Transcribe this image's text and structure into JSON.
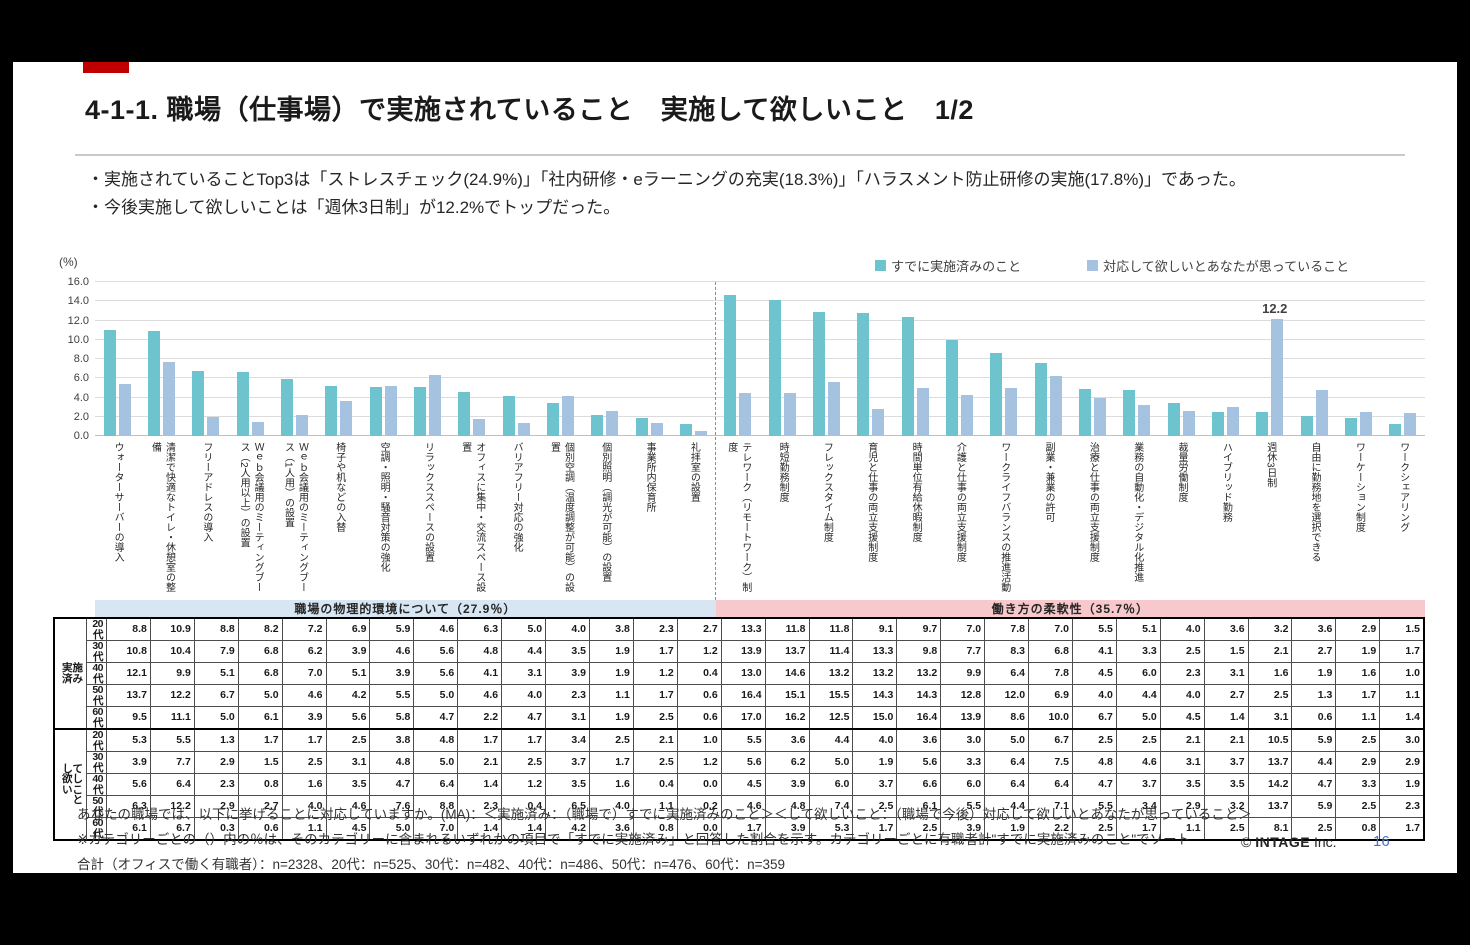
{
  "slide": {
    "title": "4-1-1. 職場（仕事場）で実施されていること　実施して欲しいこと　1/2",
    "bullets": [
      "・実施されていることTop3は「ストレスチェック(24.9%)」「社内研修・eラーニングの充実(18.3%)」「ハラスメント防止研修の実施(17.8%)」であった。",
      "・今後実施して欲しいことは「週休3日制」が12.2%でトップだった。"
    ],
    "notes": [
      "あなたの職場では、以下に挙げることに対応していますか。(MA)：＜実施済み：（職場で）すでに実施済みのこと＞＜して欲しいこと：（職場で今後）対応して欲しいとあなたが思っていること＞",
      "※カテゴリーごとの（）内の％は、そのカテゴリーに含まれるいずれかの項目で「すでに実施済み」と回答した割合を示す。カテゴリーごとに有職者計\"すでに実施済みのこと\"でソート",
      "合計（オフィスで働く有職者）：n=2328、20代：n=525、30代：n=482、40代：n=486、50代：n=476、60代：n=359"
    ],
    "copyright_symbol": "©",
    "copyright_brand": "INTAGE",
    "copyright_suffix": "Inc.",
    "page_number": "16",
    "accent_color": "#c00000"
  },
  "chart_data": {
    "type": "bar",
    "title": "",
    "unit_label": "(%)",
    "ylim": [
      0,
      16
    ],
    "ytick_step": 2,
    "grid": true,
    "legend_position": "top-right",
    "colors": {
      "implemented": "#6ec4ce",
      "desired": "#a5c3e1"
    },
    "sections": [
      {
        "label": "職場の物理的環境について（27.9％）",
        "color": "#d8e6f4",
        "count": 14
      },
      {
        "label": "働き方の柔軟性（35.7％）",
        "color": "#f8c9cc",
        "count": 16
      }
    ],
    "categories": [
      "ウォーターサーバーの導入",
      "清潔で快適なトイレ・休憩室の整備",
      "フリーアドレスの導入",
      "Ｗｅｂ会議用のミーティングブース（2人用以上）の設置",
      "Ｗｅｂ会議用のミーティングブース（1人用）の設置",
      "椅子や机などの入替",
      "空調・照明・騒音対策の強化",
      "リラックススペースの設置",
      "オフィスに集中・交流スペース設置",
      "バリアフリー対応の強化",
      "個別空調（温度調整が可能）の設置",
      "個別照明（調光が可能）の設置",
      "事業所内保育所",
      "礼拝室の設置",
      "テレワーク（リモートワーク）制度",
      "時短勤務制度",
      "フレックスタイム制度",
      "育児と仕事の両立支援制度",
      "時間単位有給休暇制度",
      "介護と仕事の両立支援制度",
      "ワークライフバランスの推進活動",
      "副業・兼業の許可",
      "治療と仕事の両立支援制度",
      "業務の自動化・デジタル化推進",
      "裁量労働制度",
      "ハイブリッド勤務",
      "週休3日制",
      "自由に勤務地を選択できる",
      "ワーケーション制度",
      "ワークシェアリング"
    ],
    "series": [
      {
        "name": "すでに実施済みのこと",
        "values": [
          11.0,
          10.9,
          6.8,
          6.6,
          5.9,
          5.2,
          5.1,
          5.1,
          4.6,
          4.2,
          3.4,
          2.2,
          1.9,
          1.2,
          14.6,
          14.1,
          12.9,
          12.8,
          12.4,
          10.0,
          8.6,
          7.6,
          4.9,
          4.8,
          3.4,
          2.5,
          2.5,
          2.1,
          1.9,
          1.3
        ]
      },
      {
        "name": "対応して欲しいとあなたが思っていること",
        "values": [
          5.4,
          7.7,
          2.0,
          1.5,
          2.2,
          3.6,
          5.2,
          6.3,
          1.8,
          1.4,
          4.2,
          2.6,
          1.4,
          0.5,
          4.5,
          4.5,
          5.6,
          2.8,
          5.0,
          4.3,
          5.0,
          6.2,
          4.0,
          3.2,
          2.6,
          3.0,
          12.2,
          4.8,
          2.5,
          2.4
        ]
      }
    ],
    "annotations": [
      {
        "category_index": 26,
        "series": 1,
        "text": "12.2"
      }
    ]
  },
  "table": {
    "row_groups": [
      {
        "label": "実施済み",
        "rows": [
          {
            "age": "20代",
            "values": [
              8.8,
              10.9,
              8.8,
              8.2,
              7.2,
              6.9,
              5.9,
              4.6,
              6.3,
              5.0,
              4.0,
              3.8,
              2.3,
              2.7,
              13.3,
              11.8,
              11.8,
              9.1,
              9.7,
              7.0,
              7.8,
              7.0,
              5.5,
              5.1,
              4.0,
              3.6,
              3.2,
              3.6,
              2.9,
              1.5
            ]
          },
          {
            "age": "30代",
            "values": [
              10.8,
              10.4,
              7.9,
              6.8,
              6.2,
              3.9,
              4.6,
              5.6,
              4.8,
              4.4,
              3.5,
              1.9,
              1.7,
              1.2,
              13.9,
              13.7,
              11.4,
              13.3,
              9.8,
              7.7,
              8.3,
              6.8,
              4.1,
              3.3,
              2.5,
              1.5,
              2.1,
              2.7,
              1.9,
              1.7
            ]
          },
          {
            "age": "40代",
            "values": [
              12.1,
              9.9,
              5.1,
              6.8,
              7.0,
              5.1,
              3.9,
              5.6,
              4.1,
              3.1,
              3.9,
              1.9,
              1.2,
              0.4,
              13.0,
              14.6,
              13.2,
              13.2,
              13.2,
              9.9,
              6.4,
              7.8,
              4.5,
              6.0,
              2.3,
              3.1,
              1.6,
              1.9,
              1.6,
              1.0
            ]
          },
          {
            "age": "50代",
            "values": [
              13.7,
              12.2,
              6.7,
              5.0,
              4.6,
              4.2,
              5.5,
              5.0,
              4.6,
              4.0,
              2.3,
              1.1,
              1.7,
              0.6,
              16.4,
              15.1,
              15.5,
              14.3,
              14.3,
              12.8,
              12.0,
              6.9,
              4.0,
              4.4,
              4.0,
              2.7,
              2.5,
              1.3,
              1.7,
              1.1
            ]
          },
          {
            "age": "60代",
            "values": [
              9.5,
              11.1,
              5.0,
              6.1,
              3.9,
              5.6,
              5.8,
              4.7,
              2.2,
              4.7,
              3.1,
              1.9,
              2.5,
              0.6,
              17.0,
              16.2,
              12.5,
              15.0,
              16.4,
              13.9,
              8.6,
              10.0,
              6.7,
              5.0,
              4.5,
              1.4,
              3.1,
              0.6,
              1.1,
              1.4
            ]
          }
        ]
      },
      {
        "label": "して欲しいこと",
        "rows": [
          {
            "age": "20代",
            "values": [
              5.3,
              5.5,
              1.3,
              1.7,
              1.7,
              2.5,
              3.8,
              4.8,
              1.7,
              1.7,
              3.4,
              2.5,
              2.1,
              1.0,
              5.5,
              3.6,
              4.4,
              4.0,
              3.6,
              3.0,
              5.0,
              6.7,
              2.5,
              2.5,
              2.1,
              2.1,
              10.5,
              5.9,
              2.5,
              3.0
            ]
          },
          {
            "age": "30代",
            "values": [
              3.9,
              7.7,
              2.9,
              1.5,
              2.5,
              3.1,
              4.8,
              5.0,
              2.1,
              2.5,
              3.7,
              1.7,
              2.5,
              1.2,
              5.6,
              6.2,
              5.0,
              1.9,
              5.6,
              3.3,
              6.4,
              7.5,
              4.8,
              4.6,
              3.1,
              3.7,
              13.7,
              4.4,
              2.9,
              2.9
            ]
          },
          {
            "age": "40代",
            "values": [
              5.6,
              6.4,
              2.3,
              0.8,
              1.6,
              3.5,
              4.7,
              6.4,
              1.4,
              1.2,
              3.5,
              1.6,
              0.4,
              0.0,
              4.5,
              3.9,
              6.0,
              3.7,
              6.6,
              6.0,
              6.4,
              6.4,
              4.7,
              3.7,
              3.5,
              3.5,
              14.2,
              4.7,
              3.3,
              1.9
            ]
          },
          {
            "age": "50代",
            "values": [
              6.3,
              12.2,
              2.9,
              2.7,
              4.0,
              4.6,
              7.6,
              8.8,
              2.3,
              0.4,
              6.5,
              4.0,
              1.1,
              0.2,
              4.6,
              4.8,
              7.4,
              2.5,
              6.1,
              5.5,
              4.4,
              7.1,
              5.5,
              3.4,
              2.9,
              3.2,
              13.7,
              5.9,
              2.5,
              2.3
            ]
          },
          {
            "age": "60代",
            "values": [
              6.1,
              6.7,
              0.3,
              0.6,
              1.1,
              4.5,
              5.0,
              7.0,
              1.4,
              1.4,
              4.2,
              3.6,
              0.8,
              0.0,
              1.7,
              3.9,
              5.3,
              1.7,
              2.5,
              3.9,
              1.9,
              2.2,
              2.5,
              1.7,
              1.1,
              2.5,
              8.1,
              2.5,
              0.8,
              1.7
            ]
          }
        ]
      }
    ]
  }
}
